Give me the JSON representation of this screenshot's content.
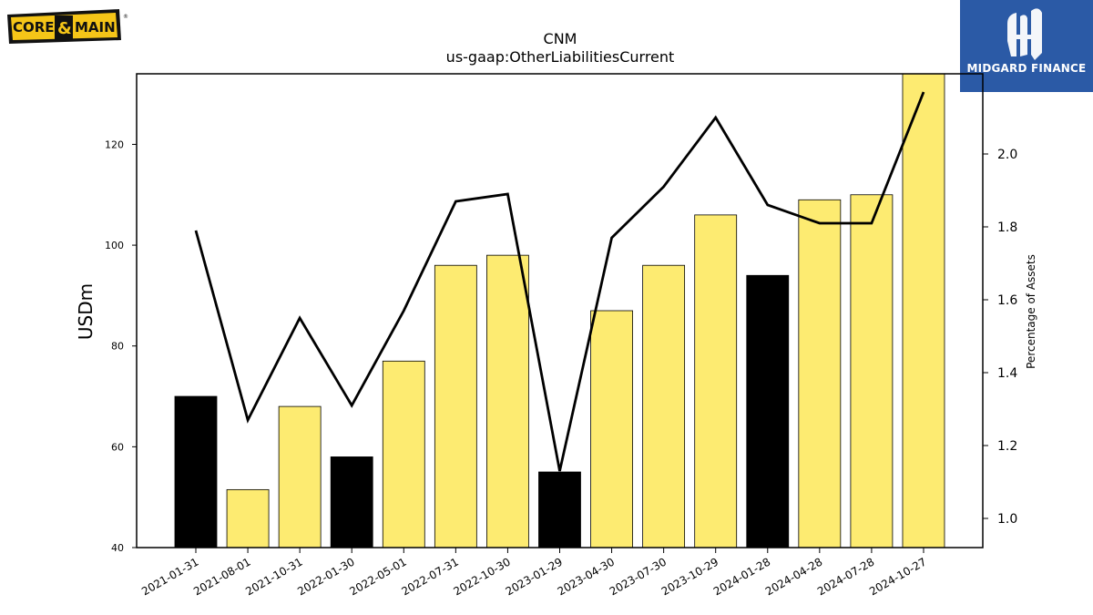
{
  "logos": {
    "left": {
      "text_a": "CORE",
      "amp": "&",
      "text_b": "MAIN",
      "reg": "®",
      "colors": {
        "bg": "#f5c518",
        "dark": "#111111"
      }
    },
    "right": {
      "text": "MIDGARD FINANCE",
      "bg": "#2b5aa6"
    }
  },
  "chart_data": {
    "type": "bar",
    "title": "CNM",
    "subtitle": "us-gaap:OtherLiabilitiesCurrent",
    "ylabel": "USDm",
    "y2label": "Percentage of Assets",
    "ylim": [
      40,
      134
    ],
    "y2lim": [
      0.92,
      2.22
    ],
    "yticks": [
      40,
      60,
      80,
      100,
      120
    ],
    "y2ticks": [
      "1.0",
      "1.2",
      "1.4",
      "1.6",
      "1.8",
      "2.0"
    ],
    "categories": [
      "2021-01-31",
      "2021-08-01",
      "2021-10-31",
      "2022-01-30",
      "2022-05-01",
      "2022-07-31",
      "2022-10-30",
      "2023-01-29",
      "2023-04-30",
      "2023-07-30",
      "2023-10-29",
      "2024-01-28",
      "2024-04-28",
      "2024-07-28",
      "2024-10-27"
    ],
    "series": [
      {
        "values": [
          70,
          51.5,
          68,
          58,
          77,
          96,
          98,
          55,
          87,
          96,
          106,
          94,
          109,
          110,
          134
        ],
        "colors": [
          "#000000",
          "#fdeb71",
          "#fdeb71",
          "#000000",
          "#fdeb71",
          "#fdeb71",
          "#fdeb71",
          "#000000",
          "#fdeb71",
          "#fdeb71",
          "#fdeb71",
          "#000000",
          "#fdeb71",
          "#fdeb71",
          "#fdeb71"
        ]
      },
      {
        "axis": "right",
        "color": "#000000",
        "values": [
          1.79,
          1.27,
          1.55,
          1.31,
          1.57,
          1.87,
          1.89,
          1.13,
          1.77,
          1.91,
          2.1,
          1.86,
          1.81,
          1.81,
          2.17
        ]
      }
    ]
  }
}
